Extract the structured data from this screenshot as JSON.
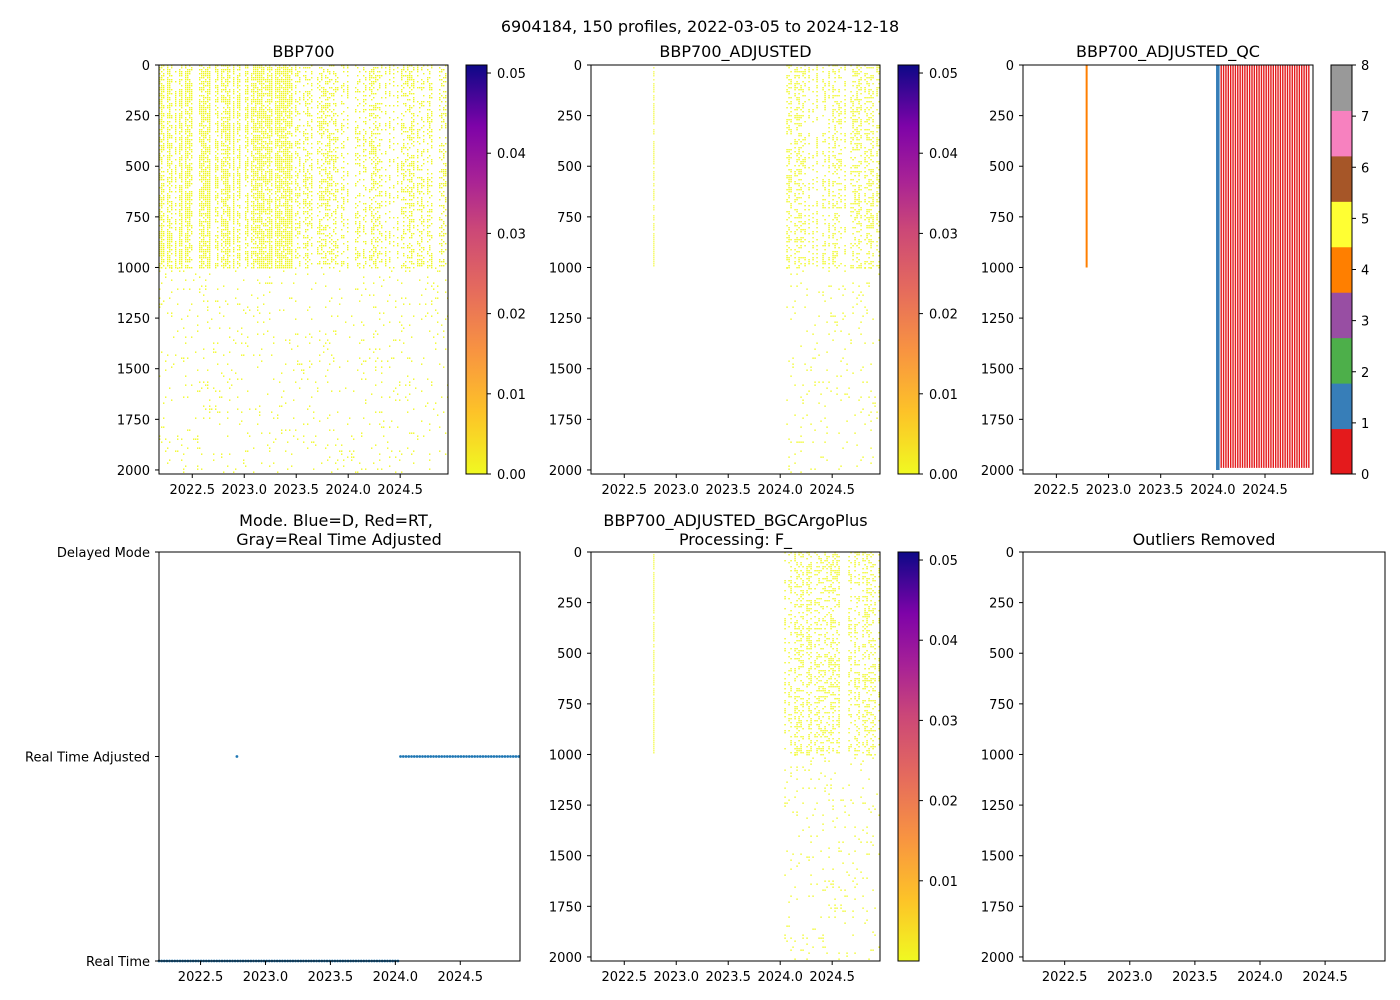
{
  "figure": {
    "suptitle": "6904184, 150 profiles, 2022-03-05 to 2024-12-18"
  },
  "chart_data": [
    {
      "id": "bbp700",
      "type": "heatmap",
      "title": "BBP700",
      "xlim": [
        2022.18,
        2024.96
      ],
      "ylim": [
        2020,
        0
      ],
      "x_ticks": [
        2022.5,
        2023.0,
        2023.5,
        2024.0,
        2024.5
      ],
      "x_tick_labels": [
        "2022.5",
        "2023.0",
        "2023.5",
        "2024.0",
        "2024.5"
      ],
      "y_ticks": [
        0,
        250,
        500,
        750,
        1000,
        1250,
        1500,
        1750,
        2000
      ],
      "y_tick_labels": [
        "0",
        "250",
        "500",
        "750",
        "1000",
        "1250",
        "1500",
        "1750",
        "2000"
      ],
      "colorbar": {
        "colormap": "plasma_r",
        "range": [
          0.0,
          0.051
        ],
        "ticks": [
          0.0,
          0.01,
          0.02,
          0.03,
          0.04,
          0.05
        ],
        "tick_labels": [
          "0.00",
          "0.01",
          "0.02",
          "0.03",
          "0.04",
          "0.05"
        ]
      },
      "dense_regions": [
        {
          "x": [
            2022.18,
            2023.45
          ],
          "depth": [
            0,
            1000
          ],
          "density": "high"
        },
        {
          "x": [
            2023.45,
            2024.96
          ],
          "depth": [
            0,
            1000
          ],
          "density": "medium"
        },
        {
          "x": [
            2022.18,
            2024.96
          ],
          "depth": [
            1000,
            2020
          ],
          "density": "sparse"
        }
      ],
      "value_range": "~0.00 (almost all samples)"
    },
    {
      "id": "bbp700_adjusted",
      "type": "heatmap",
      "title": "BBP700_ADJUSTED",
      "xlim": [
        2022.18,
        2024.96
      ],
      "ylim": [
        2020,
        0
      ],
      "x_ticks": [
        2022.5,
        2023.0,
        2023.5,
        2024.0,
        2024.5
      ],
      "x_tick_labels": [
        "2022.5",
        "2023.0",
        "2023.5",
        "2024.0",
        "2024.5"
      ],
      "y_ticks": [
        0,
        250,
        500,
        750,
        1000,
        1250,
        1500,
        1750,
        2000
      ],
      "y_tick_labels": [
        "0",
        "250",
        "500",
        "750",
        "1000",
        "1250",
        "1500",
        "1750",
        "2000"
      ],
      "colorbar": {
        "colormap": "plasma_r",
        "range": [
          0.0,
          0.051
        ],
        "ticks": [
          0.0,
          0.01,
          0.02,
          0.03,
          0.04,
          0.05
        ],
        "tick_labels": [
          "0.00",
          "0.01",
          "0.02",
          "0.03",
          "0.04",
          "0.05"
        ]
      },
      "dense_regions": [
        {
          "x": [
            2022.78,
            2022.79
          ],
          "depth": [
            0,
            990
          ],
          "density": "line"
        },
        {
          "x": [
            2024.04,
            2024.96
          ],
          "depth": [
            0,
            1000
          ],
          "density": "medium"
        },
        {
          "x": [
            2024.04,
            2024.96
          ],
          "depth": [
            1000,
            2020
          ],
          "density": "sparse"
        }
      ]
    },
    {
      "id": "bbp700_adjusted_qc",
      "type": "heatmap",
      "title": "BBP700_ADJUSTED_QC",
      "xlim": [
        2022.18,
        2024.96
      ],
      "ylim": [
        2020,
        0
      ],
      "x_ticks": [
        2022.5,
        2023.0,
        2023.5,
        2024.0,
        2024.5
      ],
      "x_tick_labels": [
        "2022.5",
        "2023.0",
        "2023.5",
        "2024.0",
        "2024.5"
      ],
      "y_ticks": [
        0,
        250,
        500,
        750,
        1000,
        1250,
        1500,
        1750,
        2000
      ],
      "y_tick_labels": [
        "0",
        "250",
        "500",
        "750",
        "1000",
        "1250",
        "1500",
        "1750",
        "2000"
      ],
      "colorbar": {
        "categories": [
          0,
          1,
          2,
          3,
          4,
          5,
          6,
          7,
          8
        ],
        "tick_labels": [
          "0",
          "1",
          "2",
          "3",
          "4",
          "5",
          "6",
          "7",
          "8"
        ],
        "colors": [
          "#e41a1c",
          "#377eb8",
          "#4daf4a",
          "#984ea3",
          "#ff7f00",
          "#ffff33",
          "#a65628",
          "#f781bf",
          "#999999"
        ]
      },
      "profiles": [
        {
          "x": 2022.79,
          "depth_max": 1000,
          "flag": 4
        },
        {
          "x": 2024.04,
          "depth_max": 2000,
          "flag": 1
        },
        {
          "x": 2024.055,
          "depth_max": 2000,
          "flag": 1
        }
      ],
      "red_profiles_from": 2024.08,
      "red_profiles_to": 2024.92,
      "red_profiles_count": 38,
      "red_profiles_depth": 1990
    },
    {
      "id": "mode",
      "type": "scatter",
      "title": "Mode. Blue=D, Red=RT,\nGray=Real Time Adjusted",
      "xlim": [
        2022.18,
        2024.96
      ],
      "x_ticks": [
        2022.5,
        2023.0,
        2023.5,
        2024.0,
        2024.5
      ],
      "x_tick_labels": [
        "2022.5",
        "2023.0",
        "2023.5",
        "2024.0",
        "2024.5"
      ],
      "y_categories": [
        "Real Time",
        "Real Time Adjusted",
        "Delayed Mode"
      ],
      "y_values": [
        0,
        1,
        2
      ],
      "series": [
        {
          "name": "Real Time",
          "y": 0,
          "x_start": 2022.18,
          "x_end": 2024.02,
          "count": 92
        },
        {
          "name": "Real Time Adjusted",
          "y": 1,
          "points": [
            2022.78
          ]
        },
        {
          "name": "Real Time Adjusted",
          "y": 1,
          "x_start": 2024.04,
          "x_end": 2024.95,
          "count": 44
        }
      ],
      "color": "#1f77b4"
    },
    {
      "id": "bgcargoplus",
      "type": "heatmap",
      "title": "BBP700_ADJUSTED_BGCArgoPlus\nProcessing: F_",
      "xlim": [
        2022.18,
        2024.96
      ],
      "ylim": [
        2020,
        0
      ],
      "x_ticks": [
        2022.5,
        2023.0,
        2023.5,
        2024.0,
        2024.5
      ],
      "x_tick_labels": [
        "2022.5",
        "2023.0",
        "2023.5",
        "2024.0",
        "2024.5"
      ],
      "y_ticks": [
        0,
        250,
        500,
        750,
        1000,
        1250,
        1500,
        1750,
        2000
      ],
      "y_tick_labels": [
        "0",
        "250",
        "500",
        "750",
        "1000",
        "1250",
        "1500",
        "1750",
        "2000"
      ],
      "colorbar": {
        "colormap": "plasma_r",
        "range": [
          0.0,
          0.051
        ],
        "ticks": [
          0.01,
          0.02,
          0.03,
          0.04,
          0.05
        ],
        "tick_labels": [
          "0.01",
          "0.02",
          "0.03",
          "0.04",
          "0.05"
        ]
      },
      "dense_regions": [
        {
          "x": [
            2022.78,
            2022.79
          ],
          "depth": [
            0,
            990
          ],
          "density": "line"
        },
        {
          "x": [
            2024.04,
            2024.96
          ],
          "depth": [
            0,
            1000
          ],
          "density": "medium"
        },
        {
          "x": [
            2024.04,
            2024.96
          ],
          "depth": [
            1000,
            2020
          ],
          "density": "sparse"
        }
      ]
    },
    {
      "id": "outliers",
      "type": "scatter",
      "title": "Outliers Removed",
      "xlim": [
        2022.18,
        2024.96
      ],
      "ylim": [
        2020,
        0
      ],
      "x_ticks": [
        2022.5,
        2023.0,
        2023.5,
        2024.0,
        2024.5
      ],
      "x_tick_labels": [
        "2022.5",
        "2023.0",
        "2023.5",
        "2024.0",
        "2024.5"
      ],
      "y_ticks": [
        0,
        250,
        500,
        750,
        1000,
        1250,
        1500,
        1750,
        2000
      ],
      "y_tick_labels": [
        "0",
        "250",
        "500",
        "750",
        "1000",
        "1250",
        "1500",
        "1750",
        "2000"
      ],
      "points": []
    }
  ]
}
